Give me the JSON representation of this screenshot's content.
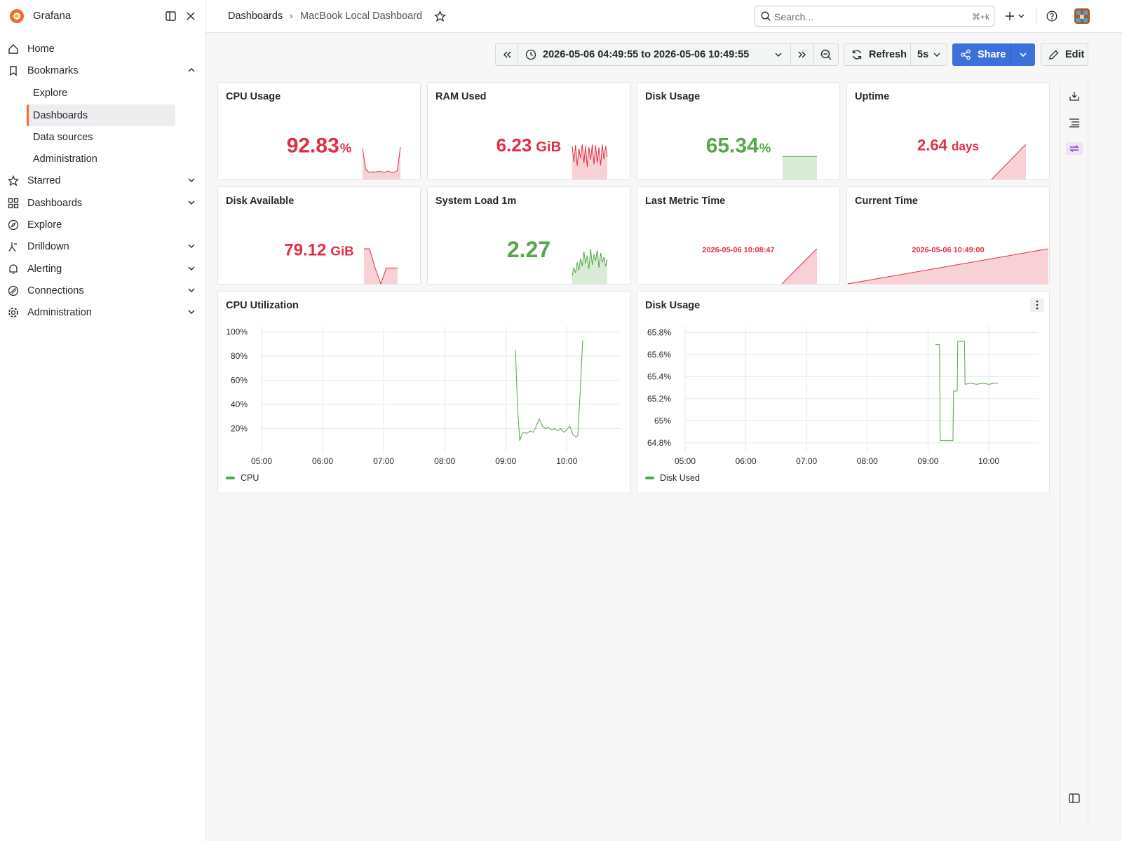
{
  "sidebar": {
    "brand": "Grafana",
    "items": [
      "Home",
      "Bookmarks",
      "Starred",
      "Dashboards",
      "Explore",
      "Drilldown",
      "Alerting",
      "Connections",
      "Administration"
    ],
    "bookmarks": [
      "Explore",
      "Dashboards",
      "Data sources",
      "Administration"
    ]
  },
  "header": {
    "breadcrumb": [
      "Dashboards",
      "MacBook Local Dashboard"
    ],
    "search": "Search...",
    "shortcut": "⌘+k"
  },
  "toolbar": {
    "time_range": "2026-05-06 04:49:55 to 2026-05-06 10:49:55",
    "refresh": "Refresh",
    "interval": "5s",
    "share": "Share",
    "edit": "Edit"
  },
  "stats": [
    {
      "title": "CPU Usage",
      "value": "92.83",
      "unit": "%",
      "color": "#e02f44",
      "spark": [
        88,
        30,
        20,
        22,
        21,
        23,
        22,
        20,
        24,
        21,
        20,
        25,
        92
      ]
    },
    {
      "title": "RAM Used",
      "value": "6.23",
      "unit": "GiB",
      "color": "#e02f44",
      "spark": [
        5.9,
        3.1,
        6.1,
        2.4,
        5.5,
        3.8,
        6.2,
        2.9,
        6.0,
        2.2,
        5.8,
        3.5,
        6.23,
        2.7,
        6.1,
        3.0,
        5.7,
        2.5,
        6.2,
        3.6,
        5.9,
        4.0
      ]
    },
    {
      "title": "Disk Usage",
      "value": "65.34",
      "unit": "%",
      "color": "#56a64b",
      "spark": [
        65.34,
        65.34,
        65.34,
        65.34,
        65.34,
        65.34
      ]
    },
    {
      "title": "Uptime",
      "value": "2.64",
      "unit": "days",
      "color": "#e02f44",
      "spark": [
        0,
        2.64
      ]
    },
    {
      "title": "Disk Available",
      "value": "79.12",
      "unit": "GiB",
      "color": "#e02f44",
      "spark": [
        95,
        95,
        43,
        0,
        43,
        43,
        43
      ]
    },
    {
      "title": "System Load 1m",
      "value": "2.27",
      "color": "#56a64b",
      "spark": [
        0.6,
        1.2,
        0.8,
        1.6,
        1.0,
        1.9,
        1.3,
        2.4,
        1.5,
        2.1,
        1.1,
        2.6,
        1.4,
        2.2,
        1.7,
        2.5,
        1.2,
        2.3,
        1.6,
        2.0,
        1.3,
        1.8
      ]
    },
    {
      "title": "Last Metric Time",
      "value": "2026-05-06 10:08:47",
      "color": "#e02f44",
      "spark": [
        0,
        1
      ]
    },
    {
      "title": "Current Time",
      "value": "2026-05-06 10:49:00",
      "color": "#e02f44",
      "spark": [
        0,
        1
      ]
    }
  ],
  "charts": [
    {
      "type": "line",
      "title": "CPU Utilization",
      "xlim": [
        5,
        10.87
      ],
      "ylim": [
        0,
        105
      ],
      "grid": true,
      "xticks": [
        {
          "value": 5,
          "label": "05:00"
        },
        {
          "value": 6,
          "label": "06:00"
        },
        {
          "value": 7,
          "label": "07:00"
        },
        {
          "value": 8,
          "label": "08:00"
        },
        {
          "value": 9,
          "label": "09:00"
        },
        {
          "value": 10,
          "label": "10:00"
        }
      ],
      "yticks": [
        {
          "value": 20,
          "label": "20%"
        },
        {
          "value": 40,
          "label": "40%"
        },
        {
          "value": 60,
          "label": "60%"
        },
        {
          "value": 80,
          "label": "80%"
        },
        {
          "value": 100,
          "label": "100%"
        }
      ],
      "series": [
        {
          "name": "CPU",
          "color": "#56a64b",
          "x": [
            9.16,
            9.19,
            9.23,
            9.26,
            9.3,
            9.35,
            9.4,
            9.45,
            9.5,
            9.55,
            9.6,
            9.65,
            9.7,
            9.75,
            9.8,
            9.85,
            9.9,
            9.95,
            10.0,
            10.05,
            10.1,
            10.15,
            10.18,
            10.22,
            10.26
          ],
          "values": [
            85,
            40,
            10,
            15,
            17,
            16,
            18,
            17,
            22,
            28,
            22,
            20,
            21,
            19,
            20,
            18,
            20,
            17,
            19,
            22,
            15,
            13,
            14,
            50,
            93
          ]
        }
      ]
    },
    {
      "type": "line",
      "title": "Disk Usage",
      "xlim": [
        5,
        10.82
      ],
      "ylim": [
        64.71,
        65.86
      ],
      "grid": true,
      "xticks": [
        {
          "value": 5,
          "label": "05:00"
        },
        {
          "value": 6,
          "label": "06:00"
        },
        {
          "value": 7,
          "label": "07:00"
        },
        {
          "value": 8,
          "label": "08:00"
        },
        {
          "value": 9,
          "label": "09:00"
        },
        {
          "value": 10,
          "label": "10:00"
        }
      ],
      "yticks": [
        {
          "value": 65.8,
          "label": "65.8%"
        },
        {
          "value": 65.6,
          "label": "65.6%"
        },
        {
          "value": 65.4,
          "label": "65.4%"
        },
        {
          "value": 65.2,
          "label": "65.2%"
        },
        {
          "value": 65,
          "label": "65%"
        },
        {
          "value": 64.8,
          "label": "64.8%"
        }
      ],
      "series": [
        {
          "name": "Disk Used",
          "color": "#56a64b",
          "x": [
            9.12,
            9.19,
            9.2,
            9.41,
            9.42,
            9.48,
            9.49,
            9.6,
            9.61,
            9.7,
            9.8,
            9.9,
            10.0,
            10.1,
            10.15
          ],
          "values": [
            65.69,
            65.69,
            64.82,
            64.82,
            65.27,
            65.27,
            65.72,
            65.72,
            65.33,
            65.34,
            65.33,
            65.34,
            65.33,
            65.34,
            65.34
          ]
        }
      ]
    }
  ]
}
